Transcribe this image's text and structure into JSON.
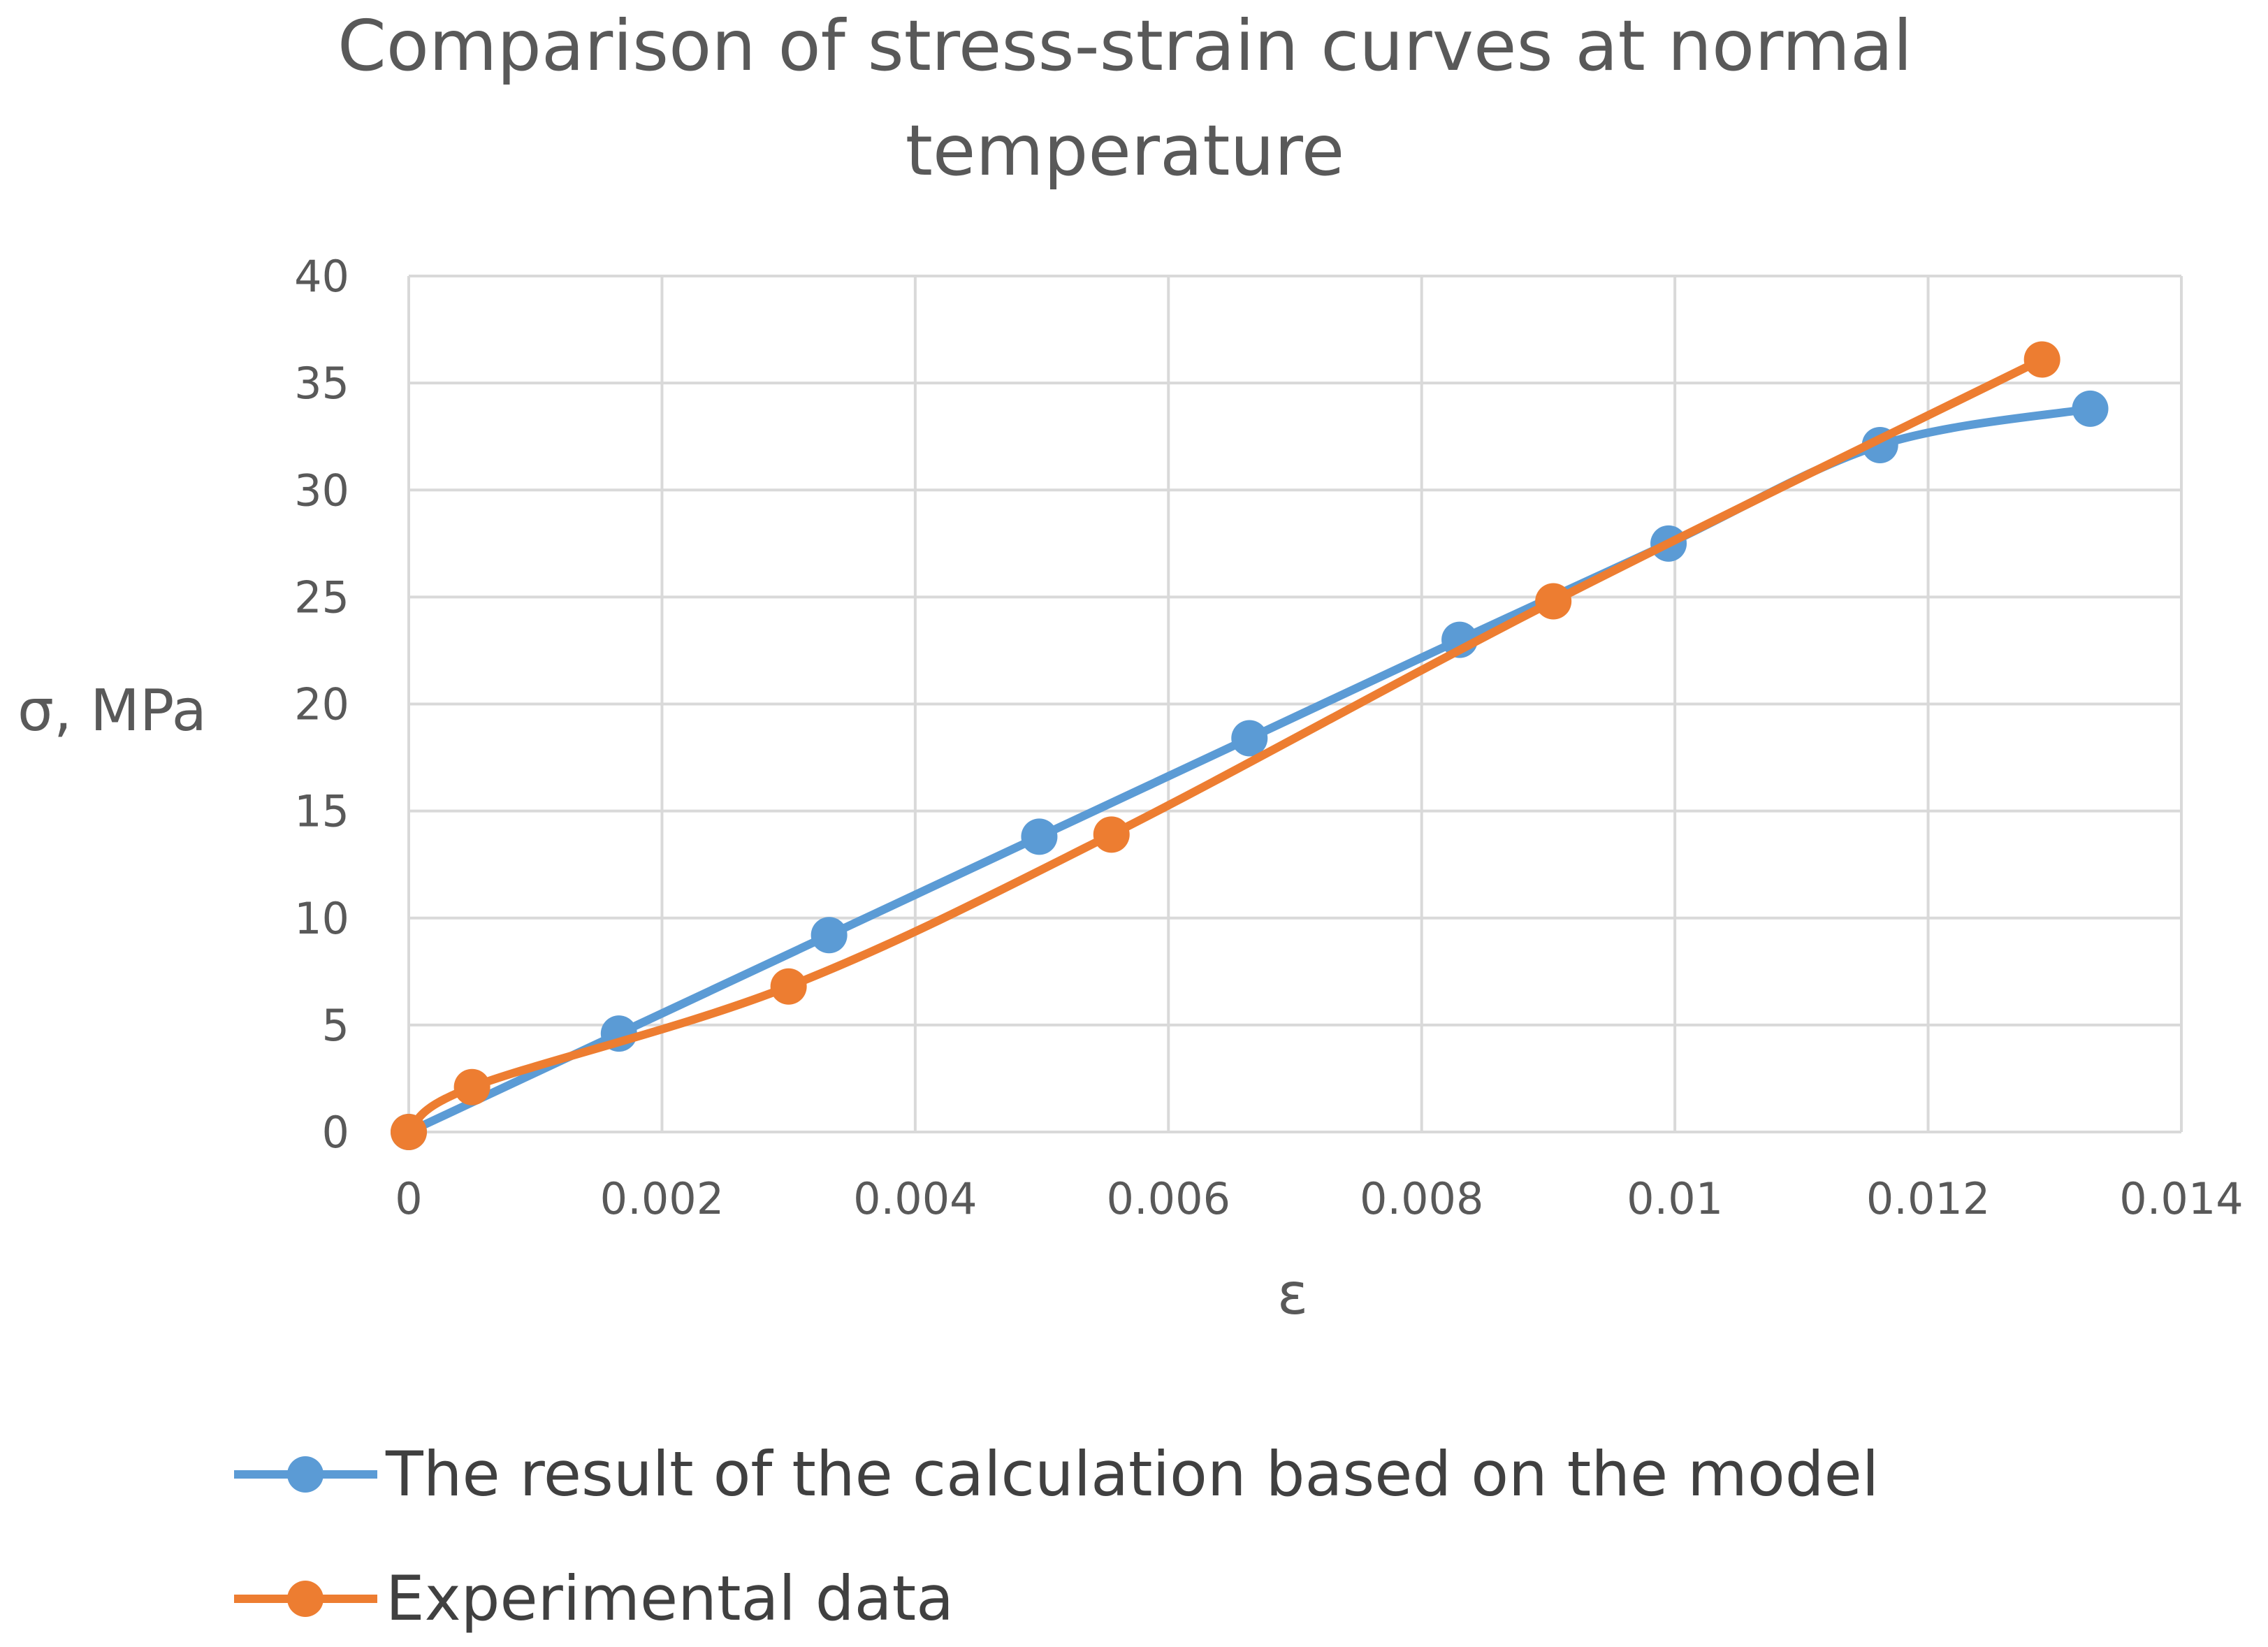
{
  "chart_data": {
    "type": "scatter",
    "title_lines": [
      "Comparison of stress-strain curves at normal",
      "temperature"
    ],
    "xlabel": "ε",
    "ylabel": "σ, MPa",
    "xlim": [
      0,
      0.014
    ],
    "ylim": [
      0,
      40
    ],
    "x_ticks": [
      "0",
      "0.002",
      "0.004",
      "0.006",
      "0.008",
      "0.01",
      "0.012",
      "0.014"
    ],
    "y_ticks": [
      "0",
      "5",
      "10",
      "15",
      "20",
      "25",
      "30",
      "35",
      "40"
    ],
    "grid": true,
    "legend_position": "bottom",
    "series": [
      {
        "name": "The result of the calculation based on the model",
        "color": "#5B9BD5",
        "x": [
          0,
          0.00166,
          0.00332,
          0.00498,
          0.00664,
          0.0083,
          0.00995,
          0.01162,
          0.01328
        ],
        "y": [
          0,
          4.6,
          9.2,
          13.8,
          18.4,
          23.0,
          27.5,
          32.1,
          33.8
        ]
      },
      {
        "name": "Experimental data",
        "color": "#ED7D31",
        "x": [
          0,
          0.0005,
          0.003,
          0.00555,
          0.00904,
          0.0129
        ],
        "y": [
          0,
          2.1,
          6.8,
          13.9,
          24.8,
          36.1
        ]
      }
    ]
  }
}
